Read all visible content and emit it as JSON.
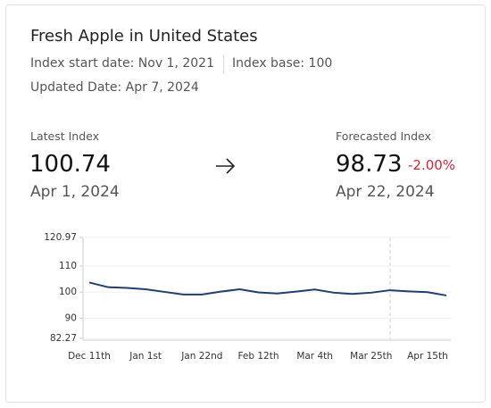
{
  "header": {
    "title": "Fresh Apple in United States",
    "start_date": "Index start date: Nov 1, 2021",
    "base": "Index base: 100",
    "updated": "Updated Date: Apr 7, 2024"
  },
  "latest": {
    "label": "Latest Index",
    "value": "100.74",
    "date": "Apr 1, 2024"
  },
  "forecast": {
    "label": "Forecasted Index",
    "value": "98.73",
    "change": "-2.00%",
    "date": "Apr 22, 2024"
  },
  "chart_data": {
    "type": "line",
    "categories": [
      "Dec 11th",
      null,
      null,
      "Jan 1st",
      null,
      null,
      "Jan 22nd",
      null,
      null,
      "Feb 12th",
      null,
      null,
      "Mar 4th",
      null,
      null,
      "Mar 25th",
      null,
      null,
      "Apr 15th",
      null
    ],
    "series": [
      {
        "color": "#1f3f73",
        "values": [
          103.7,
          101.9,
          101.6,
          101.1,
          100.1,
          99.1,
          99.1,
          100.2,
          101.1,
          99.9,
          99.5,
          100.2,
          101.0,
          99.8,
          99.3,
          99.8,
          100.74,
          100.3,
          100.0,
          98.73
        ]
      }
    ],
    "ylim": [
      82.27,
      120.97
    ],
    "yticks": [
      82.27,
      90,
      100,
      110,
      120.97
    ],
    "grid": true
  }
}
